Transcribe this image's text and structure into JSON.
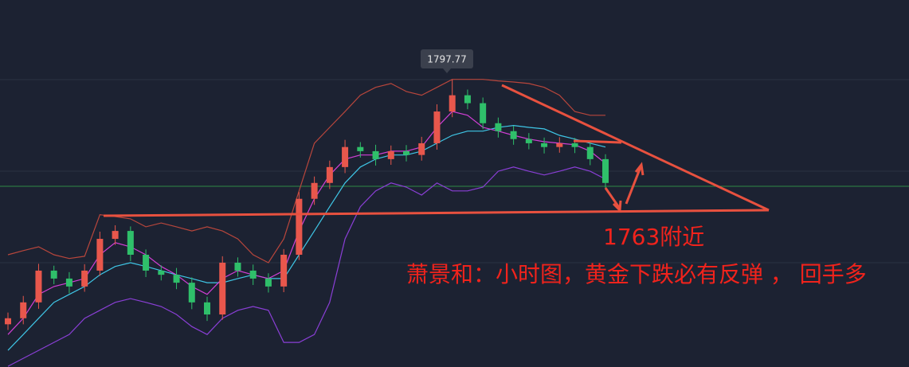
{
  "chart_data": {
    "type": "candlestick",
    "ylim": [
      1721.7,
      1818.8
    ],
    "up_color": "#e8574c",
    "down_color": "#2fbf6a",
    "open": [
      1733.0,
      1734.6,
      1738.8,
      1747.2,
      1745.1,
      1743.0,
      1747.2,
      1755.6,
      1757.7,
      1751.4,
      1747.2,
      1746.1,
      1744.0,
      1738.8,
      1735.6,
      1749.3,
      1747.2,
      1745.1,
      1743.0,
      1751.4,
      1766.2,
      1770.4,
      1774.6,
      1779.9,
      1778.8,
      1776.7,
      1778.8,
      1777.8,
      1780.9,
      1789.3,
      1793.6,
      1791.5,
      1786.2,
      1784.1,
      1782.0,
      1780.9,
      1779.9,
      1780.9,
      1779.9,
      1776.7
    ],
    "high": [
      1736.1,
      1740.5,
      1749.0,
      1748.5,
      1746.8,
      1748.9,
      1757.5,
      1759.2,
      1758.9,
      1752.8,
      1748.6,
      1747.9,
      1745.4,
      1740.3,
      1751.0,
      1750.7,
      1748.8,
      1746.5,
      1752.9,
      1768.0,
      1772.1,
      1776.3,
      1781.8,
      1781.2,
      1780.5,
      1780.3,
      1780.4,
      1782.6,
      1791.2,
      1797.77,
      1795.1,
      1793.0,
      1787.7,
      1785.5,
      1783.6,
      1782.4,
      1782.5,
      1782.3,
      1781.4,
      1778.0
    ],
    "low": [
      1731.5,
      1733.0,
      1737.1,
      1743.6,
      1741.2,
      1741.6,
      1745.8,
      1754.0,
      1749.7,
      1745.5,
      1744.6,
      1742.3,
      1737.0,
      1733.9,
      1734.2,
      1745.6,
      1743.4,
      1741.4,
      1741.5,
      1750.0,
      1764.6,
      1768.8,
      1773.0,
      1777.1,
      1775.0,
      1775.2,
      1776.1,
      1776.3,
      1779.2,
      1787.8,
      1789.9,
      1784.6,
      1782.4,
      1780.5,
      1779.3,
      1778.2,
      1778.4,
      1778.3,
      1775.1,
      1768.8
    ],
    "close": [
      1734.6,
      1738.8,
      1747.2,
      1745.1,
      1743.0,
      1747.2,
      1755.6,
      1757.7,
      1751.4,
      1747.2,
      1746.1,
      1744.0,
      1738.8,
      1735.6,
      1749.3,
      1747.2,
      1745.1,
      1743.0,
      1751.4,
      1766.2,
      1770.4,
      1774.6,
      1779.9,
      1778.8,
      1776.7,
      1778.8,
      1777.8,
      1780.9,
      1789.3,
      1793.6,
      1791.5,
      1786.2,
      1784.1,
      1782.0,
      1780.9,
      1779.9,
      1780.9,
      1779.9,
      1776.7,
      1770.4
    ],
    "series": [
      {
        "color": "#b8463c",
        "values": [
          1751.4,
          1752.5,
          1753.5,
          1751.4,
          1750.4,
          1751.0,
          1762.0,
          1761.5,
          1760.9,
          1758.8,
          1759.8,
          1758.8,
          1757.7,
          1758.8,
          1757.7,
          1755.6,
          1751.4,
          1749.3,
          1755.6,
          1768.3,
          1780.9,
          1785.1,
          1789.3,
          1793.6,
          1795.7,
          1796.7,
          1794.6,
          1793.6,
          1795.7,
          1797.8,
          1797.8,
          1797.8,
          1797.4,
          1797.1,
          1796.7,
          1795.7,
          1793.6,
          1789.3,
          1788.3,
          1788.3
        ]
      },
      {
        "color": "#8a3fd6",
        "values": [
          1721.9,
          1724.0,
          1726.1,
          1728.2,
          1730.3,
          1734.6,
          1736.7,
          1738.8,
          1739.8,
          1738.8,
          1737.7,
          1735.6,
          1732.4,
          1730.3,
          1734.6,
          1736.7,
          1737.7,
          1736.7,
          1728.2,
          1728.2,
          1730.3,
          1738.8,
          1755.6,
          1764.1,
          1768.3,
          1770.4,
          1769.3,
          1767.2,
          1770.4,
          1768.3,
          1768.3,
          1769.3,
          1773.5,
          1774.6,
          1773.5,
          1772.5,
          1773.5,
          1774.6,
          1773.5,
          1771.4
        ]
      },
      {
        "color": "#3fc6e6",
        "values": [
          1726.1,
          1730.3,
          1734.6,
          1738.8,
          1740.9,
          1743.0,
          1746.1,
          1748.3,
          1749.3,
          1748.3,
          1747.2,
          1746.1,
          1745.1,
          1744.0,
          1744.0,
          1745.1,
          1746.1,
          1745.1,
          1745.1,
          1751.4,
          1757.7,
          1764.1,
          1770.4,
          1774.6,
          1776.7,
          1777.8,
          1777.8,
          1778.8,
          1780.9,
          1783.0,
          1784.1,
          1784.1,
          1785.1,
          1785.6,
          1785.1,
          1784.7,
          1783.0,
          1782.0,
          1780.9,
          1779.9
        ]
      },
      {
        "color": "#d23fd6",
        "values": [
          1730.3,
          1734.6,
          1740.9,
          1743.0,
          1744.0,
          1745.1,
          1751.4,
          1754.6,
          1753.5,
          1751.4,
          1748.3,
          1746.1,
          1743.0,
          1740.9,
          1745.1,
          1747.2,
          1746.1,
          1745.1,
          1747.2,
          1757.7,
          1766.2,
          1772.5,
          1776.7,
          1777.8,
          1777.8,
          1778.8,
          1778.8,
          1779.9,
          1785.1,
          1789.3,
          1788.3,
          1785.1,
          1784.1,
          1783.0,
          1782.0,
          1781.3,
          1780.9,
          1780.5,
          1778.8,
          1775.6
        ]
      }
    ],
    "annotations": [
      "1763附近",
      "萧景和：小时图，黄金下跌必有反弹 ， 回手多"
    ]
  }
}
